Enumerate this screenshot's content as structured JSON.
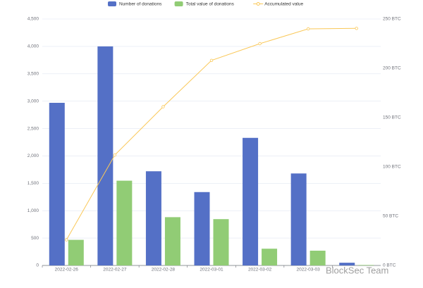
{
  "chart_data": {
    "type": "bar",
    "categories": [
      "2022-02-26",
      "2022-02-27",
      "2022-02-28",
      "2022-03-01",
      "2022-03-02",
      "2022-03-03",
      null
    ],
    "series": [
      {
        "name": "Number of donations",
        "type": "bar",
        "color": "#5470c6",
        "values": [
          2970,
          4000,
          1720,
          1340,
          2330,
          1680,
          50
        ]
      },
      {
        "name": "Total value of donations",
        "type": "bar",
        "color": "#91cc75",
        "axis": "y2",
        "values": [
          26,
          86,
          49,
          47,
          17,
          15,
          0.5
        ]
      },
      {
        "name": "Accumulated value",
        "type": "line",
        "color": "#fac858",
        "axis": "y2",
        "values": [
          26,
          112,
          161,
          208,
          225,
          240,
          240.5
        ]
      }
    ],
    "ylim": [
      0,
      4500
    ],
    "yticks": [
      0,
      500,
      {
        "value": 1000,
        "label": "1,000"
      },
      {
        "value": 1500,
        "label": "1,500"
      },
      {
        "value": 2000,
        "label": "2,000"
      },
      {
        "value": 2500,
        "label": "2,500"
      },
      {
        "value": 3000,
        "label": "3,000"
      },
      {
        "value": 3500,
        "label": "3,500"
      },
      {
        "value": 4000,
        "label": "4,000"
      },
      {
        "value": 4500,
        "label": "4,500"
      }
    ],
    "y2lim": [
      0,
      250
    ],
    "y2ticks": [
      {
        "value": 0,
        "label": "0 BTC"
      },
      {
        "value": 50,
        "label": "50 BTC"
      },
      {
        "value": 100,
        "label": "100 BTC"
      },
      {
        "value": 150,
        "label": "150 BTC"
      },
      {
        "value": 200,
        "label": "200 BTC"
      },
      {
        "value": 250,
        "label": "250 BTC"
      }
    ],
    "grid": true,
    "legend": "top",
    "annotation": "BlockSec Team"
  }
}
